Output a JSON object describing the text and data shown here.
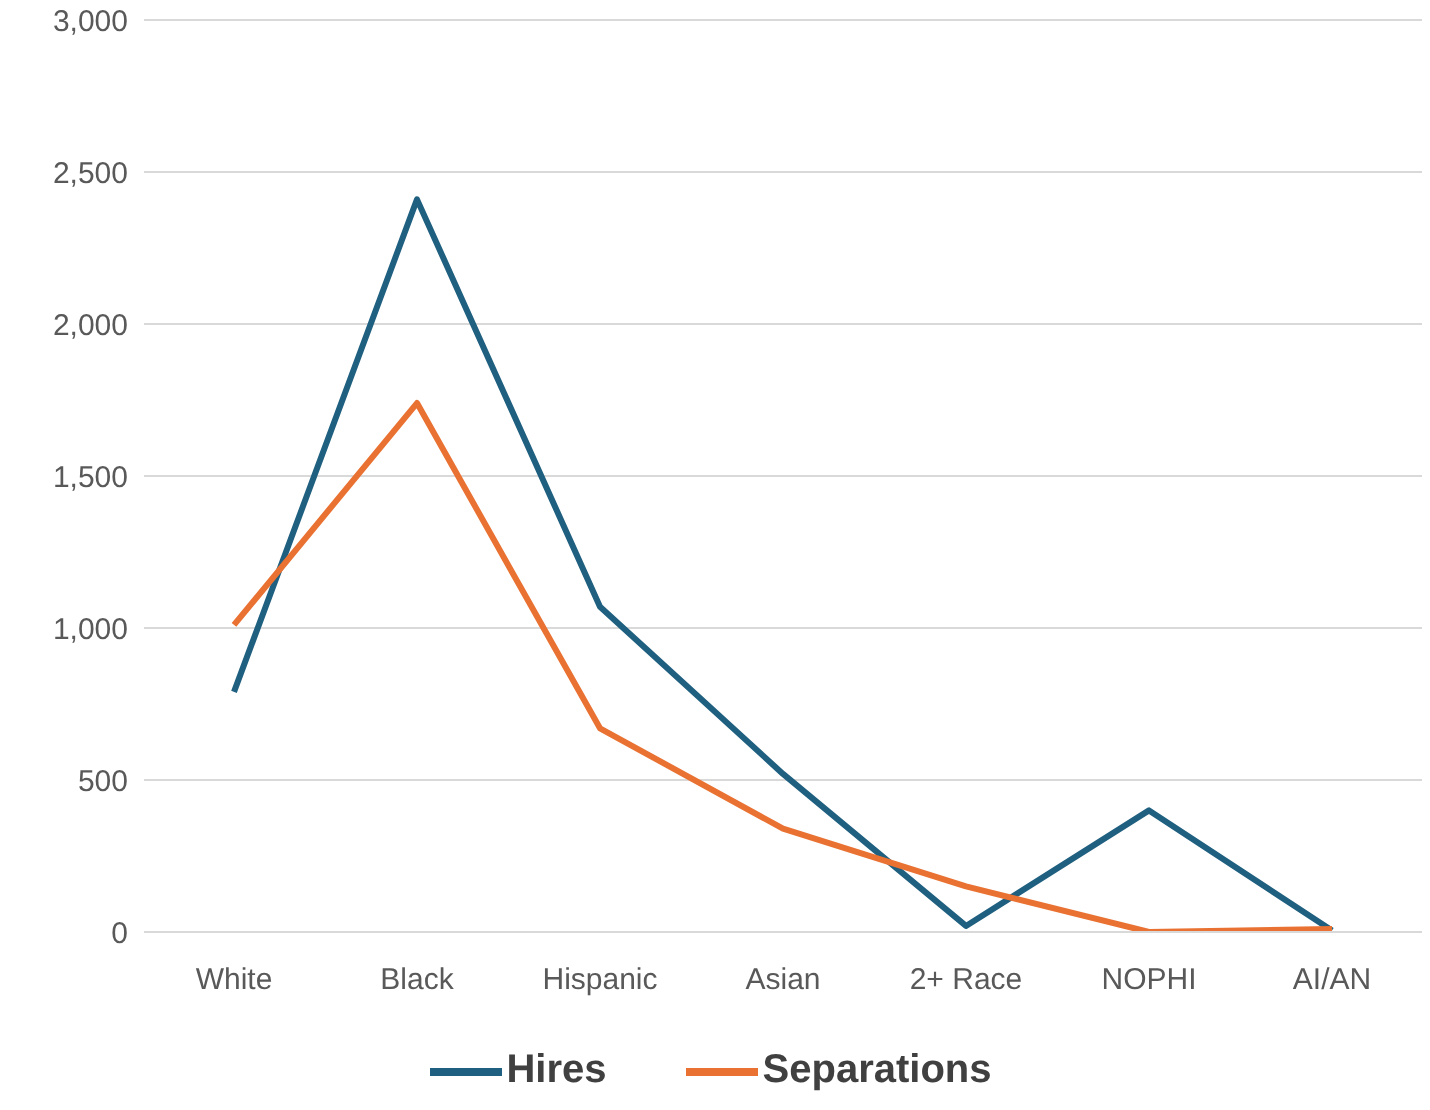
{
  "chart_data": {
    "type": "line",
    "categories": [
      "White",
      "Black",
      "Hispanic",
      "Asian",
      "2+ Race",
      "NOPHI",
      "AI/AN"
    ],
    "series": [
      {
        "name": "Hires",
        "color": "#1f5f7f",
        "values": [
          790,
          2410,
          1070,
          520,
          20,
          400,
          5
        ]
      },
      {
        "name": "Separations",
        "color": "#e97132",
        "values": [
          1010,
          1740,
          670,
          340,
          150,
          0,
          10
        ]
      }
    ],
    "ylim": [
      0,
      3000
    ],
    "yticks": [
      0,
      500,
      {
        "value": 1000,
        "label": "1,000"
      },
      {
        "value": 1500,
        "label": "1,500"
      },
      {
        "value": 2000,
        "label": "2,000"
      },
      {
        "value": 2500,
        "label": "2,500"
      },
      {
        "value": 3000,
        "label": "3,000"
      }
    ],
    "grid": "y",
    "legend": "bottom",
    "marker": "none",
    "line_style": "solid"
  }
}
